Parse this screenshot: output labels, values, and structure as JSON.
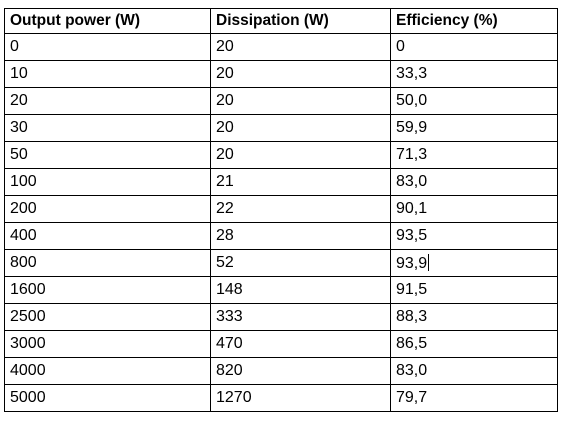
{
  "table": {
    "headers": [
      "Output power (W)",
      "Dissipation (W)",
      "Efficiency (%)"
    ],
    "rows": [
      [
        "0",
        "20",
        "0"
      ],
      [
        "10",
        "20",
        "33,3"
      ],
      [
        "20",
        "20",
        "50,0"
      ],
      [
        "30",
        "20",
        "59,9"
      ],
      [
        "50",
        "20",
        "71,3"
      ],
      [
        "100",
        "21",
        "83,0"
      ],
      [
        "200",
        "22",
        "90,1"
      ],
      [
        "400",
        "28",
        "93,5"
      ],
      [
        "800",
        "52",
        "93,9"
      ],
      [
        "1600",
        "148",
        "91,5"
      ],
      [
        "2500",
        "333",
        "88,3"
      ],
      [
        "3000",
        "470",
        "86,5"
      ],
      [
        "4000",
        "820",
        "83,0"
      ],
      [
        "5000",
        "1270",
        "79,7"
      ]
    ]
  }
}
